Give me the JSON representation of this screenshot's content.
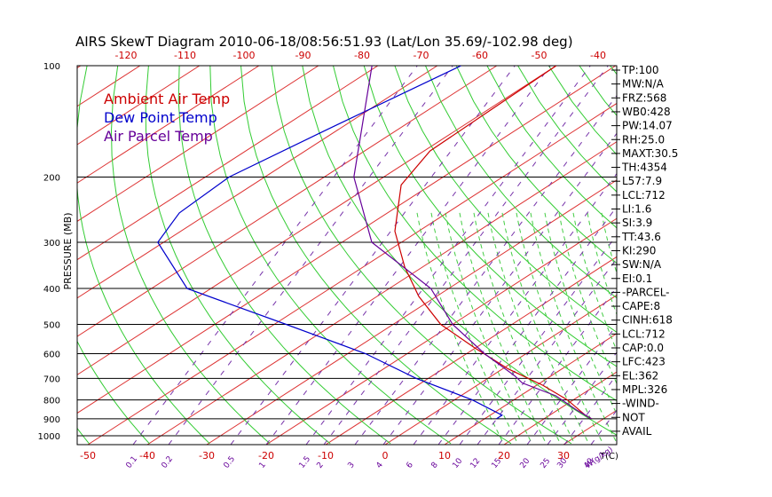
{
  "chart_data": {
    "type": "line",
    "title": "AIRS SkewT Diagram 2010-06-18/08:56:51.93 (Lat/Lon 35.69/-102.98 deg)",
    "ylabel": "PRESSURE (MB)",
    "xlabel": "T(C)",
    "mixing_ratio_unit": "W(g/kg)",
    "pressure_ticks": [
      "100",
      "200",
      "300",
      "400",
      "500",
      "600",
      "700",
      "800",
      "900",
      "1000"
    ],
    "pressure_values": [
      100,
      200,
      300,
      400,
      500,
      600,
      700,
      800,
      900,
      1000
    ],
    "top_temp_ticks": [
      "-120",
      "-110",
      "-100",
      "-90",
      "-80",
      "-70",
      "-60",
      "-50",
      "-40"
    ],
    "top_temp_values": [
      -120,
      -110,
      -100,
      -90,
      -80,
      -70,
      -60,
      -50,
      -40
    ],
    "bottom_temp_ticks": [
      "-50",
      "-40",
      "-30",
      "-20",
      "-10",
      "0",
      "10",
      "20",
      "30"
    ],
    "bottom_temp_values": [
      -50,
      -40,
      -30,
      -20,
      -10,
      0,
      10,
      20,
      30
    ],
    "mixing_ratio_ticks": [
      "0.1",
      "0.2",
      "0.5",
      "1",
      "1.5",
      "2",
      "3",
      "4",
      "6",
      "8",
      "10",
      "12",
      "15",
      "20",
      "25",
      "30",
      "40"
    ],
    "legend": [
      {
        "label": "Ambient Air Temp",
        "color": "#cc0000"
      },
      {
        "label": "Dew Point Temp",
        "color": "#0000cc"
      },
      {
        "label": "Air Parcel Temp",
        "color": "#660099"
      }
    ],
    "series": [
      {
        "name": "Ambient Air Temp",
        "color": "#cc0000",
        "points": [
          [
            100,
            -70
          ],
          [
            170,
            -69
          ],
          [
            210,
            -65
          ],
          [
            280,
            -54
          ],
          [
            350,
            -43
          ],
          [
            420,
            -33
          ],
          [
            500,
            -22
          ],
          [
            580,
            -10
          ],
          [
            660,
            1
          ],
          [
            730,
            11
          ],
          [
            800,
            19
          ],
          [
            880,
            26
          ],
          [
            900,
            28
          ]
        ]
      },
      {
        "name": "Dew Point Temp",
        "color": "#0000cc",
        "points": [
          [
            100,
            -86
          ],
          [
            150,
            -92
          ],
          [
            200,
            -96
          ],
          [
            250,
            -95
          ],
          [
            300,
            -91
          ],
          [
            400,
            -74
          ],
          [
            500,
            -48
          ],
          [
            600,
            -27
          ],
          [
            700,
            -12
          ],
          [
            800,
            3
          ],
          [
            880,
            12
          ],
          [
            900,
            12
          ]
        ]
      },
      {
        "name": "Air Parcel Temp",
        "color": "#660099",
        "points": [
          [
            100,
            -101
          ],
          [
            200,
            -75
          ],
          [
            300,
            -55
          ],
          [
            400,
            -33
          ],
          [
            500,
            -20
          ],
          [
            600,
            -7
          ],
          [
            690,
            4
          ],
          [
            720,
            7
          ],
          [
            780,
            16
          ],
          [
            850,
            23
          ],
          [
            900,
            28
          ]
        ]
      }
    ],
    "indices": [
      "TP:100",
      "MW:N/A",
      "FRZ:568",
      "WB0:428",
      "PW:14.07",
      "RH:25.0",
      "MAXT:30.5",
      "TH:4354",
      "L57:7.9",
      "LCL:712",
      "LI:1.6",
      "SI:3.9",
      "TT:43.6",
      "KI:290",
      "SW:N/A",
      "EI:0.1",
      "-PARCEL-",
      "CAPE:8",
      "CINH:618",
      "LCL:712",
      "CAP:0.0",
      "LFC:423",
      "EL:362",
      "MPL:326",
      "-WIND-",
      "NOT",
      "AVAIL"
    ],
    "grid": true
  }
}
